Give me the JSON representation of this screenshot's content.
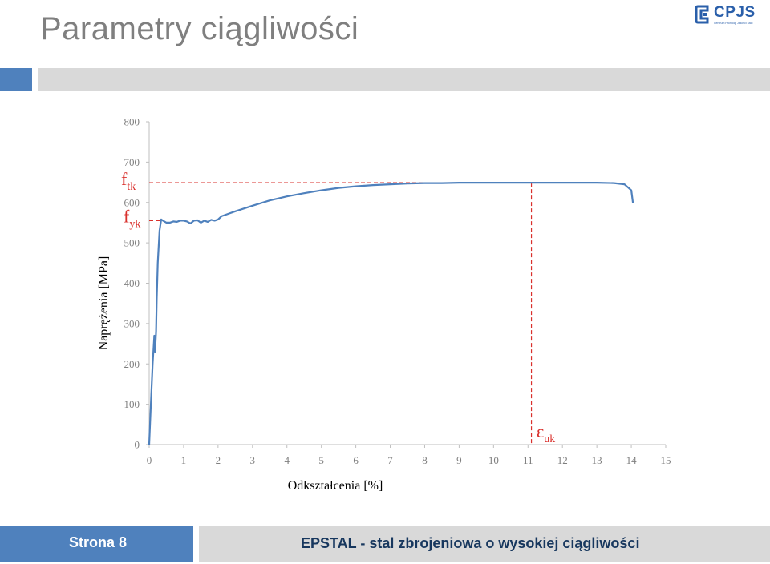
{
  "slide": {
    "title": "Parametry ciągliwości"
  },
  "logo": {
    "name": "CPJS",
    "tagline": "Centrum Promocji Jakości Stali",
    "color": "#2a5faa"
  },
  "footer": {
    "page_label": "Strona 8",
    "caption": "EPSTAL - stal zbrojeniowa o wysokiej ciągliwości"
  },
  "colors": {
    "accent_blue": "#4f81bd",
    "band_grey": "#d9d9d9",
    "curve": "#4f81bd",
    "annotation_red": "#d9302c",
    "title_grey": "#7f7f7f",
    "footer_text": "#17375e"
  },
  "chart_data": {
    "type": "line",
    "title": "",
    "xlabel": "Odkształcenia [%]",
    "ylabel": "Naprężenia [MPa]",
    "xlim": [
      0,
      15
    ],
    "ylim": [
      0,
      800
    ],
    "xticks": [
      0,
      1,
      2,
      3,
      4,
      5,
      6,
      7,
      8,
      9,
      10,
      11,
      12,
      13,
      14,
      15
    ],
    "yticks": [
      0,
      100,
      200,
      300,
      400,
      500,
      600,
      700,
      800
    ],
    "grid": false,
    "series": [
      {
        "x": [
          0,
          0.05,
          0.1,
          0.15,
          0.17,
          0.2,
          0.22,
          0.25,
          0.3,
          0.35,
          0.4,
          0.5,
          0.6,
          0.7,
          0.8,
          0.9,
          1.0,
          1.1,
          1.2,
          1.3,
          1.4,
          1.5,
          1.6,
          1.7,
          1.8,
          1.9,
          2.0,
          2.1,
          2.3,
          2.5,
          3.0,
          3.5,
          4.0,
          4.5,
          5.0,
          5.5,
          6.0,
          6.5,
          7.0,
          7.5,
          8.0,
          8.5,
          9.0,
          9.5,
          10.0,
          10.5,
          11.0,
          11.5,
          12.0,
          12.5,
          13.0,
          13.5,
          13.8,
          14.0,
          14.05
        ],
        "y": [
          0,
          100,
          200,
          270,
          230,
          280,
          360,
          450,
          530,
          558,
          555,
          550,
          550,
          553,
          552,
          555,
          555,
          553,
          548,
          555,
          556,
          550,
          555,
          552,
          557,
          555,
          558,
          566,
          572,
          578,
          592,
          605,
          615,
          623,
          630,
          636,
          640,
          643,
          645,
          647,
          648,
          648,
          649,
          649,
          649,
          649,
          649,
          649,
          649,
          649,
          649,
          648,
          645,
          630,
          598
        ]
      }
    ],
    "annotations": [
      {
        "label": "f",
        "subscript": "tk",
        "y": 649
      },
      {
        "label": "f",
        "subscript": "yk",
        "y": 555
      },
      {
        "label": "ε",
        "subscript": "uk",
        "x": 11.1
      }
    ]
  }
}
